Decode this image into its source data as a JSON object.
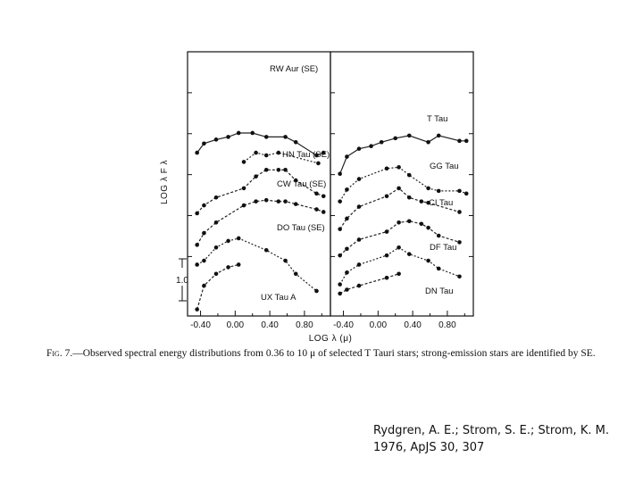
{
  "caption": {
    "figure_label": "Fig. 7.",
    "text": "—Observed spectral energy distributions from 0.36 to 10 μ of selected T Tauri stars; strong-emission stars are identified by SE."
  },
  "citation": {
    "line1": "Rydgren, A. E.; Strom, S. E.; Strom, K. M.",
    "line2": "1976, ApJS 30, 307"
  },
  "chart_data": [
    {
      "type": "line",
      "xlabel": "LOG λ (μ)",
      "ylabel": "LOG λ F λ",
      "xlim": [
        -0.55,
        1.1
      ],
      "x_ticks": [
        -0.4,
        0.0,
        0.4,
        0.8
      ],
      "x_tick_labels": [
        "-0.40",
        "0.00",
        "0.40",
        "0.80"
      ],
      "scale_bar_label": "1.0",
      "series": [
        {
          "name": "RW Aur (SE)",
          "x": [
            -0.44,
            -0.36,
            -0.22,
            -0.08,
            0.04,
            0.2,
            0.36,
            0.58,
            0.7,
            0.94,
            1.02
          ],
          "y": [
            9.2,
            9.55,
            9.7,
            9.8,
            9.95,
            9.95,
            9.8,
            9.8,
            9.6,
            9.1,
            9.2
          ]
        },
        {
          "name": "HN Tau (SE)",
          "x": [
            0.1,
            0.24,
            0.36,
            0.5,
            0.96
          ],
          "y": [
            8.85,
            9.2,
            9.1,
            9.2,
            8.8
          ]
        },
        {
          "name": "CW Tau (SE)",
          "x": [
            -0.44,
            -0.36,
            -0.22,
            0.1,
            0.24,
            0.36,
            0.5,
            0.58,
            0.7,
            0.94,
            1.02
          ],
          "y": [
            6.9,
            7.2,
            7.5,
            7.85,
            8.3,
            8.55,
            8.55,
            8.55,
            8.15,
            7.65,
            7.55
          ]
        },
        {
          "name": "DO Tau (SE)",
          "x": [
            -0.44,
            -0.36,
            -0.22,
            0.1,
            0.24,
            0.36,
            0.5,
            0.58,
            0.7,
            0.94,
            1.02
          ],
          "y": [
            5.7,
            6.15,
            6.55,
            7.2,
            7.35,
            7.4,
            7.35,
            7.35,
            7.25,
            7.05,
            6.95
          ]
        },
        {
          "name": "UX Tau A",
          "x": [
            -0.44,
            -0.36,
            -0.22,
            -0.08,
            0.04,
            0.36,
            0.58,
            0.7,
            0.94
          ],
          "y": [
            4.95,
            5.1,
            5.6,
            5.85,
            5.95,
            5.5,
            5.1,
            4.6,
            3.95
          ]
        },
        {
          "name": "",
          "x": [
            -0.44,
            -0.36,
            -0.22,
            -0.08,
            0.04
          ],
          "y": [
            3.25,
            4.15,
            4.6,
            4.85,
            4.95
          ]
        }
      ]
    },
    {
      "type": "line",
      "xlabel": "",
      "ylabel": "",
      "xlim": [
        -0.55,
        1.1
      ],
      "x_ticks": [
        -0.4,
        0.0,
        0.4,
        0.8
      ],
      "x_tick_labels": [
        "-0.40",
        "0.00",
        "0.40",
        "0.80"
      ],
      "series": [
        {
          "name": "T Tau",
          "x": [
            -0.44,
            -0.36,
            -0.22,
            -0.08,
            0.04,
            0.2,
            0.36,
            0.58,
            0.7,
            0.94,
            1.02
          ],
          "y": [
            8.4,
            9.05,
            9.35,
            9.45,
            9.6,
            9.75,
            9.85,
            9.6,
            9.85,
            9.65,
            9.65
          ]
        },
        {
          "name": "GG Tau",
          "x": [
            -0.44,
            -0.36,
            -0.22,
            0.1,
            0.24,
            0.36,
            0.58,
            0.7,
            0.94,
            1.02
          ],
          "y": [
            7.35,
            7.8,
            8.2,
            8.6,
            8.65,
            8.35,
            7.85,
            7.75,
            7.75,
            7.65
          ]
        },
        {
          "name": "CI Tau",
          "x": [
            -0.44,
            -0.36,
            -0.22,
            0.1,
            0.24,
            0.36,
            0.5,
            0.58,
            0.94
          ],
          "y": [
            6.3,
            6.7,
            7.15,
            7.55,
            7.85,
            7.5,
            7.35,
            7.3,
            6.95
          ]
        },
        {
          "name": "DF Tau",
          "x": [
            -0.44,
            -0.36,
            -0.22,
            0.1,
            0.24,
            0.36,
            0.5,
            0.58,
            0.7,
            0.94
          ],
          "y": [
            5.3,
            5.55,
            5.9,
            6.2,
            6.55,
            6.6,
            6.5,
            6.35,
            6.05,
            5.8
          ]
        },
        {
          "name": "DN Tau",
          "x": [
            -0.44,
            -0.36,
            -0.22,
            0.1,
            0.24,
            0.36,
            0.58,
            0.7,
            0.94
          ],
          "y": [
            4.2,
            4.65,
            4.95,
            5.3,
            5.6,
            5.35,
            5.1,
            4.8,
            4.5
          ]
        },
        {
          "name": "",
          "x": [
            -0.44,
            -0.36,
            -0.22,
            0.1,
            0.24
          ],
          "y": [
            3.85,
            4.0,
            4.15,
            4.45,
            4.6
          ]
        }
      ]
    }
  ]
}
